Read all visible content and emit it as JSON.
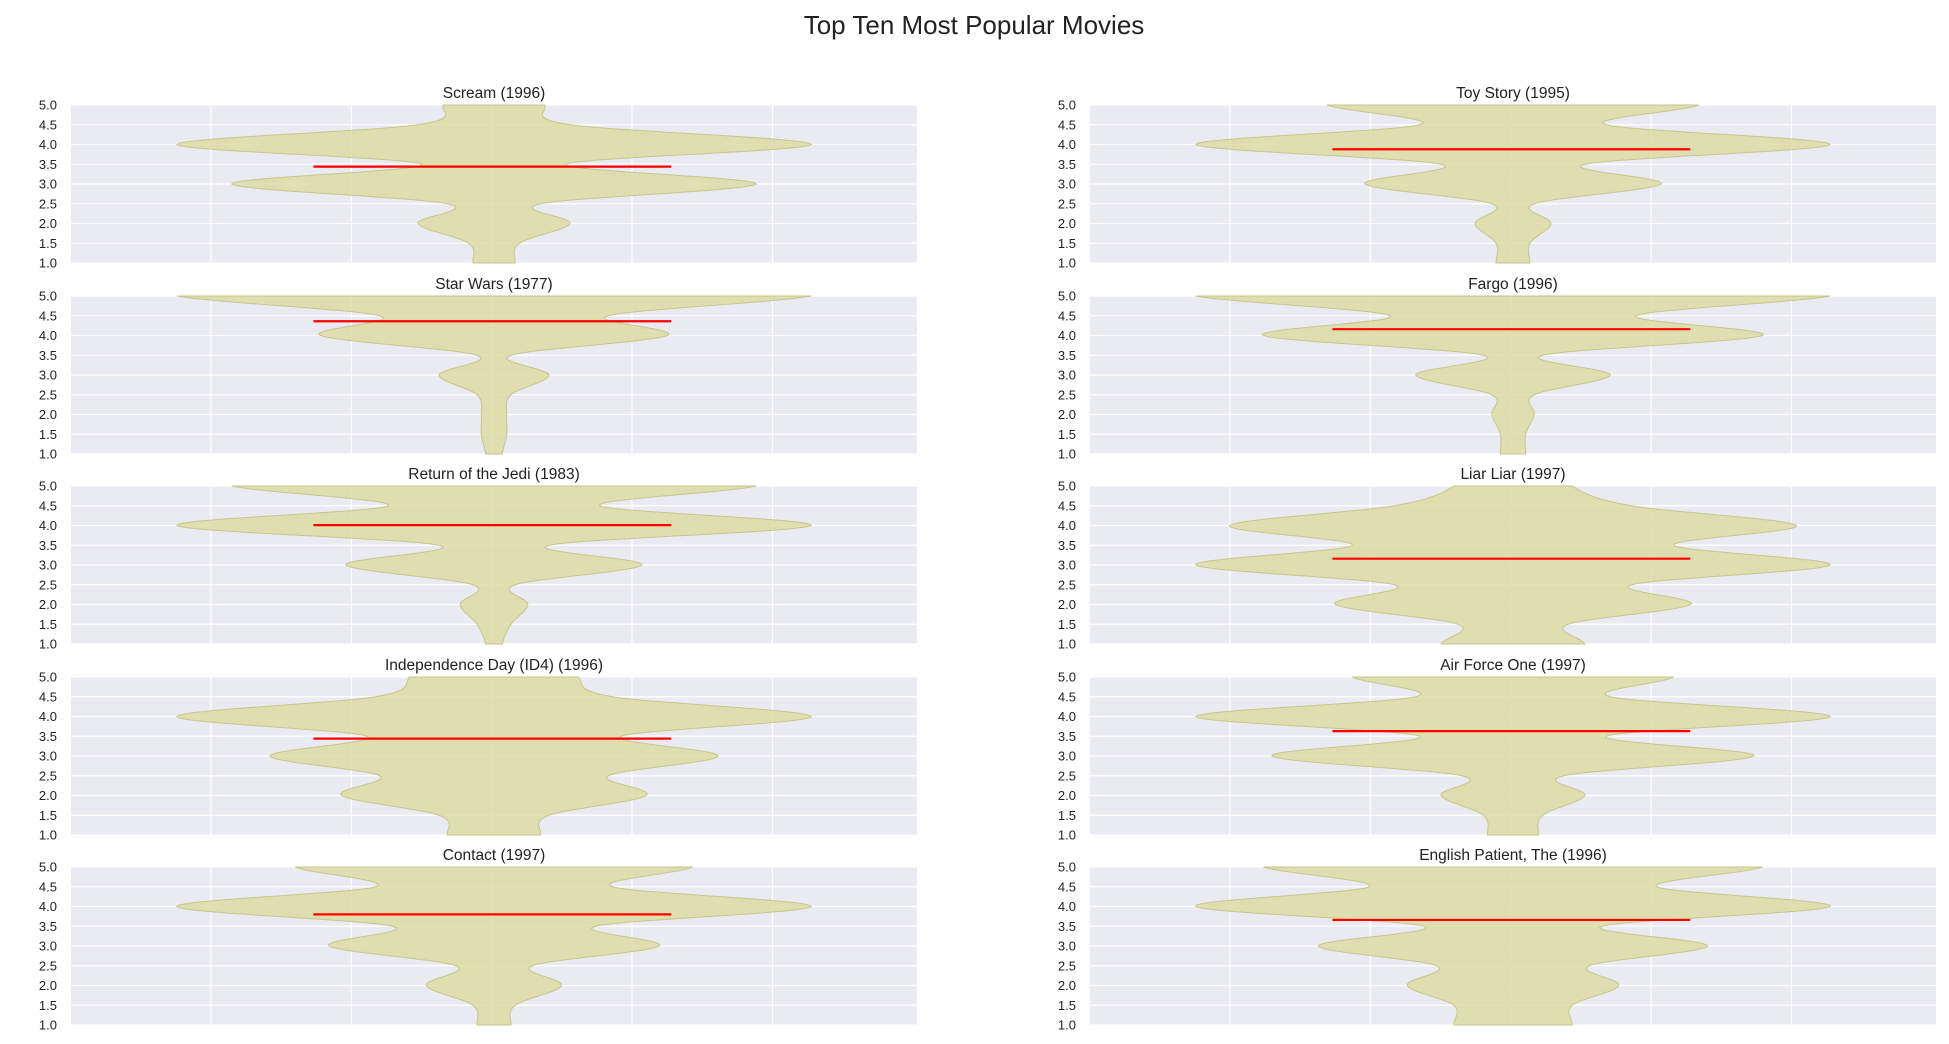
{
  "title": "Top Ten Most Popular Movies",
  "colors": {
    "background": "#eaeaf2",
    "grid": "#ffffff",
    "violin_fill": "#dcdca4",
    "violin_edge": "#c6c68a",
    "mean_line": "#ff0000",
    "text": "#222222"
  },
  "chart_data": [
    {
      "type": "violin",
      "title": "Scream (1996)",
      "ylim": [
        1.0,
        5.0
      ],
      "yticks": [
        "1.0",
        "1.5",
        "2.0",
        "2.5",
        "3.0",
        "3.5",
        "4.0",
        "4.5",
        "5.0"
      ],
      "mean": 3.44,
      "density": [
        [
          1.0,
          0.05
        ],
        [
          1.5,
          0.06
        ],
        [
          2.0,
          0.18
        ],
        [
          2.5,
          0.11
        ],
        [
          3.0,
          0.62
        ],
        [
          3.5,
          0.17
        ],
        [
          4.0,
          0.75
        ],
        [
          4.5,
          0.18
        ],
        [
          5.0,
          0.12
        ]
      ]
    },
    {
      "type": "violin",
      "title": "Toy Story (1995)",
      "ylim": [
        1.0,
        5.0
      ],
      "yticks": [
        "1.0",
        "1.5",
        "2.0",
        "2.5",
        "3.0",
        "3.5",
        "4.0",
        "4.5",
        "5.0"
      ],
      "mean": 3.88,
      "density": [
        [
          1.0,
          0.04
        ],
        [
          1.5,
          0.04
        ],
        [
          2.0,
          0.09
        ],
        [
          2.5,
          0.05
        ],
        [
          3.0,
          0.35
        ],
        [
          3.5,
          0.17
        ],
        [
          4.0,
          0.75
        ],
        [
          4.5,
          0.22
        ],
        [
          5.0,
          0.44
        ]
      ]
    },
    {
      "type": "violin",
      "title": "Star Wars (1977)",
      "ylim": [
        1.0,
        5.0
      ],
      "yticks": [
        "1.0",
        "1.5",
        "2.0",
        "2.5",
        "3.0",
        "3.5",
        "4.0",
        "4.5",
        "5.0"
      ],
      "mean": 4.36,
      "density": [
        [
          1.0,
          0.02
        ],
        [
          1.5,
          0.03
        ],
        [
          2.0,
          0.03
        ],
        [
          2.5,
          0.04
        ],
        [
          3.0,
          0.13
        ],
        [
          3.5,
          0.04
        ],
        [
          4.0,
          0.41
        ],
        [
          4.5,
          0.27
        ],
        [
          5.0,
          0.75
        ]
      ]
    },
    {
      "type": "violin",
      "title": "Fargo (1996)",
      "ylim": [
        1.0,
        5.0
      ],
      "yticks": [
        "1.0",
        "1.5",
        "2.0",
        "2.5",
        "3.0",
        "3.5",
        "4.0",
        "4.5",
        "5.0"
      ],
      "mean": 4.16,
      "density": [
        [
          1.0,
          0.03
        ],
        [
          1.5,
          0.03
        ],
        [
          2.0,
          0.05
        ],
        [
          2.5,
          0.05
        ],
        [
          3.0,
          0.23
        ],
        [
          3.5,
          0.07
        ],
        [
          4.0,
          0.59
        ],
        [
          4.5,
          0.29
        ],
        [
          5.0,
          0.75
        ]
      ]
    },
    {
      "type": "violin",
      "title": "Return of the Jedi (1983)",
      "ylim": [
        1.0,
        5.0
      ],
      "yticks": [
        "1.0",
        "1.5",
        "2.0",
        "2.5",
        "3.0",
        "3.5",
        "4.0",
        "4.5",
        "5.0"
      ],
      "mean": 4.01,
      "density": [
        [
          1.0,
          0.02
        ],
        [
          1.5,
          0.04
        ],
        [
          2.0,
          0.08
        ],
        [
          2.5,
          0.05
        ],
        [
          3.0,
          0.35
        ],
        [
          3.5,
          0.13
        ],
        [
          4.0,
          0.75
        ],
        [
          4.5,
          0.25
        ],
        [
          5.0,
          0.62
        ]
      ]
    },
    {
      "type": "violin",
      "title": "Liar Liar (1997)",
      "ylim": [
        1.0,
        5.0
      ],
      "yticks": [
        "1.0",
        "1.5",
        "2.0",
        "2.5",
        "3.0",
        "3.5",
        "4.0",
        "4.5",
        "5.0"
      ],
      "mean": 3.16,
      "density": [
        [
          1.0,
          0.17
        ],
        [
          1.5,
          0.13
        ],
        [
          2.0,
          0.42
        ],
        [
          2.5,
          0.28
        ],
        [
          3.0,
          0.75
        ],
        [
          3.5,
          0.38
        ],
        [
          4.0,
          0.67
        ],
        [
          4.5,
          0.28
        ],
        [
          5.0,
          0.14
        ]
      ]
    },
    {
      "type": "violin",
      "title": "Independence Day (ID4) (1996)",
      "ylim": [
        1.0,
        5.0
      ],
      "yticks": [
        "1.0",
        "1.5",
        "2.0",
        "2.5",
        "3.0",
        "3.5",
        "4.0",
        "4.5",
        "5.0"
      ],
      "mean": 3.44,
      "density": [
        [
          1.0,
          0.11
        ],
        [
          1.5,
          0.13
        ],
        [
          2.0,
          0.36
        ],
        [
          2.5,
          0.27
        ],
        [
          3.0,
          0.53
        ],
        [
          3.5,
          0.3
        ],
        [
          4.0,
          0.75
        ],
        [
          4.5,
          0.28
        ],
        [
          5.0,
          0.2
        ]
      ]
    },
    {
      "type": "violin",
      "title": "Air Force One (1997)",
      "ylim": [
        1.0,
        5.0
      ],
      "yticks": [
        "1.0",
        "1.5",
        "2.0",
        "2.5",
        "3.0",
        "3.5",
        "4.0",
        "4.5",
        "5.0"
      ],
      "mean": 3.63,
      "density": [
        [
          1.0,
          0.06
        ],
        [
          1.5,
          0.07
        ],
        [
          2.0,
          0.17
        ],
        [
          2.5,
          0.12
        ],
        [
          3.0,
          0.57
        ],
        [
          3.5,
          0.22
        ],
        [
          4.0,
          0.75
        ],
        [
          4.5,
          0.23
        ],
        [
          5.0,
          0.38
        ]
      ]
    },
    {
      "type": "violin",
      "title": "Contact (1997)",
      "ylim": [
        1.0,
        5.0
      ],
      "yticks": [
        "1.0",
        "1.5",
        "2.0",
        "2.5",
        "3.0",
        "3.5",
        "4.0",
        "4.5",
        "5.0"
      ],
      "mean": 3.8,
      "density": [
        [
          1.0,
          0.04
        ],
        [
          1.5,
          0.05
        ],
        [
          2.0,
          0.16
        ],
        [
          2.5,
          0.09
        ],
        [
          3.0,
          0.39
        ],
        [
          3.5,
          0.24
        ],
        [
          4.0,
          0.75
        ],
        [
          4.5,
          0.28
        ],
        [
          5.0,
          0.47
        ]
      ]
    },
    {
      "type": "violin",
      "title": "English Patient, The (1996)",
      "ylim": [
        1.0,
        5.0
      ],
      "yticks": [
        "1.0",
        "1.5",
        "2.0",
        "2.5",
        "3.0",
        "3.5",
        "4.0",
        "4.5",
        "5.0"
      ],
      "mean": 3.66,
      "density": [
        [
          1.0,
          0.14
        ],
        [
          1.5,
          0.14
        ],
        [
          2.0,
          0.25
        ],
        [
          2.5,
          0.18
        ],
        [
          3.0,
          0.46
        ],
        [
          3.5,
          0.21
        ],
        [
          4.0,
          0.75
        ],
        [
          4.5,
          0.34
        ],
        [
          5.0,
          0.59
        ]
      ]
    }
  ]
}
